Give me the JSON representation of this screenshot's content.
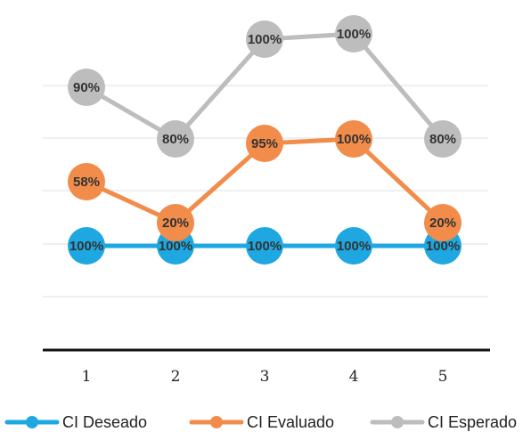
{
  "chart_data": {
    "type": "line",
    "categories": [
      "1",
      "2",
      "3",
      "4",
      "5"
    ],
    "series": [
      {
        "name": "CI Deseado",
        "color": "#1ea7e0",
        "values": [
          100,
          100,
          100,
          100,
          100
        ],
        "labels": [
          "100%",
          "100%",
          "100%",
          "100%",
          "100%"
        ]
      },
      {
        "name": "CI Evaluado",
        "color": "#f28c4a",
        "values": [
          58,
          20,
          95,
          100,
          20
        ],
        "labels": [
          "58%",
          "20%",
          "95%",
          "100%",
          "20%"
        ]
      },
      {
        "name": "CI Esperado",
        "color": "#bdbdbd",
        "values": [
          90,
          80,
          100,
          100,
          80
        ],
        "labels": [
          "90%",
          "80%",
          "100%",
          "100%",
          "80%"
        ]
      }
    ],
    "legend_position": "bottom",
    "grid": true
  }
}
